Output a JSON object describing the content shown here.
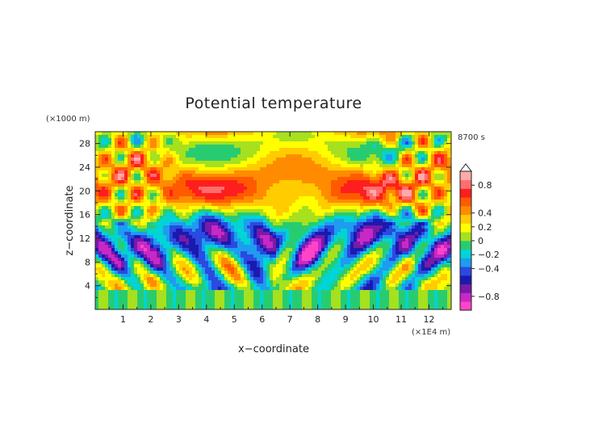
{
  "chart_data": {
    "type": "heatmap",
    "title": "Potential temperature",
    "xlabel": "x−coordinate",
    "ylabel": "z−coordinate",
    "x_unit": "(×1E4 m)",
    "y_unit": "(×1000 m)",
    "time_label": "8700 s",
    "xlim": [
      0,
      12.8
    ],
    "ylim": [
      0,
      30
    ],
    "x_ticks": [
      1,
      2,
      3,
      4,
      5,
      6,
      7,
      8,
      9,
      10,
      11,
      12
    ],
    "y_ticks": [
      4,
      8,
      12,
      16,
      20,
      24,
      28
    ],
    "colorbar": {
      "range": [
        -1.0,
        1.0
      ],
      "tick_values": [
        0.8,
        0.4,
        0.2,
        0,
        -0.2,
        -0.4,
        -0.8
      ],
      "tick_labels": [
        "0.8",
        "0.4",
        "0.2",
        "0",
        "−0.2",
        "−0.4",
        "−0.8"
      ],
      "colors": [
        "#ff44c8",
        "#c828c8",
        "#7a1aa8",
        "#1a1ab0",
        "#2a4ae0",
        "#1e9cf0",
        "#00d4d4",
        "#28cc70",
        "#a6e01e",
        "#ffff00",
        "#ffcc00",
        "#ff8c00",
        "#ff5a00",
        "#ff1e1e",
        "#ff6e6e",
        "#ffaaaa"
      ],
      "extend_top": true
    }
  }
}
